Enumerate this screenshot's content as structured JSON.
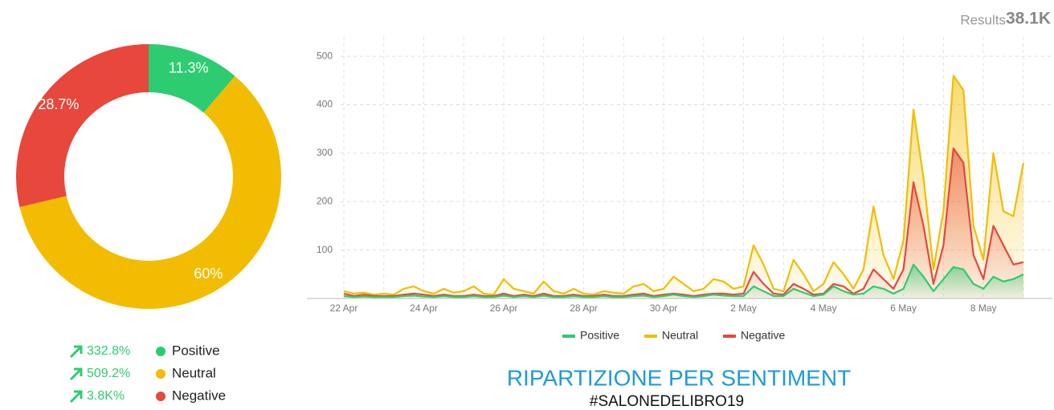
{
  "results": {
    "label": "Results",
    "value": "38.1K"
  },
  "chart_data": [
    {
      "type": "pie",
      "donut": true,
      "categories": [
        "Positive",
        "Neutral",
        "Negative"
      ],
      "values": [
        11.3,
        60,
        28.7
      ],
      "value_labels": [
        "11.3%",
        "60%",
        "28.7%"
      ],
      "colors": [
        "#2ecc71",
        "#f2bd00",
        "#e8473c"
      ],
      "changes": [
        "332.8%",
        "509.2%",
        "3.8K%"
      ]
    },
    {
      "type": "area",
      "categories": [
        "22 Apr",
        null,
        null,
        null,
        null,
        null,
        null,
        null,
        "24 Apr",
        null,
        null,
        null,
        null,
        null,
        null,
        null,
        "26 Apr",
        null,
        null,
        null,
        null,
        null,
        null,
        null,
        "28 Apr",
        null,
        null,
        null,
        null,
        null,
        null,
        null,
        "30 Apr",
        null,
        null,
        null,
        null,
        null,
        null,
        null,
        "2 May",
        null,
        null,
        null,
        null,
        null,
        null,
        null,
        "4 May",
        null,
        null,
        null,
        null,
        null,
        null,
        null,
        "6 May",
        null,
        null,
        null,
        null,
        null,
        null,
        null,
        "8 May",
        null,
        null,
        null,
        null
      ],
      "series": [
        {
          "name": "Positive",
          "color": "#2ecc71",
          "values": [
            5,
            3,
            4,
            3,
            3,
            3,
            5,
            6,
            4,
            3,
            5,
            3,
            3,
            5,
            3,
            3,
            6,
            3,
            5,
            3,
            6,
            3,
            3,
            5,
            3,
            3,
            5,
            3,
            3,
            5,
            6,
            3,
            5,
            8,
            5,
            3,
            5,
            8,
            6,
            5,
            5,
            25,
            15,
            5,
            5,
            20,
            12,
            5,
            8,
            25,
            15,
            8,
            10,
            25,
            20,
            10,
            20,
            70,
            45,
            15,
            40,
            65,
            60,
            30,
            20,
            45,
            35,
            40,
            50
          ]
        },
        {
          "name": "Neutral",
          "color": "#f2bd00",
          "values": [
            15,
            10,
            12,
            8,
            10,
            8,
            20,
            25,
            15,
            10,
            20,
            12,
            15,
            25,
            10,
            8,
            40,
            20,
            15,
            10,
            35,
            15,
            10,
            20,
            10,
            8,
            15,
            12,
            10,
            25,
            30,
            15,
            20,
            45,
            30,
            15,
            20,
            40,
            35,
            20,
            25,
            110,
            70,
            20,
            15,
            80,
            50,
            15,
            30,
            75,
            50,
            20,
            60,
            190,
            90,
            40,
            120,
            390,
            250,
            60,
            180,
            460,
            430,
            150,
            80,
            300,
            180,
            170,
            280
          ]
        },
        {
          "name": "Negative",
          "color": "#e8473c",
          "values": [
            10,
            5,
            8,
            5,
            5,
            5,
            8,
            10,
            8,
            5,
            8,
            5,
            5,
            8,
            5,
            5,
            10,
            5,
            8,
            5,
            10,
            5,
            5,
            8,
            5,
            5,
            8,
            5,
            5,
            8,
            10,
            5,
            8,
            10,
            8,
            5,
            8,
            10,
            10,
            8,
            10,
            55,
            30,
            10,
            8,
            30,
            20,
            8,
            10,
            30,
            25,
            10,
            20,
            60,
            40,
            20,
            60,
            240,
            150,
            30,
            110,
            310,
            280,
            90,
            40,
            150,
            110,
            70,
            75
          ]
        }
      ],
      "ylim": [
        0,
        540
      ],
      "yticks": [
        100,
        200,
        300,
        400,
        500
      ],
      "grid": true,
      "legend": "bottom"
    }
  ],
  "footer": {
    "title": "RIPARTIZIONE PER SENTIMENT",
    "subtitle": "#SALONEDELIBRO19"
  }
}
